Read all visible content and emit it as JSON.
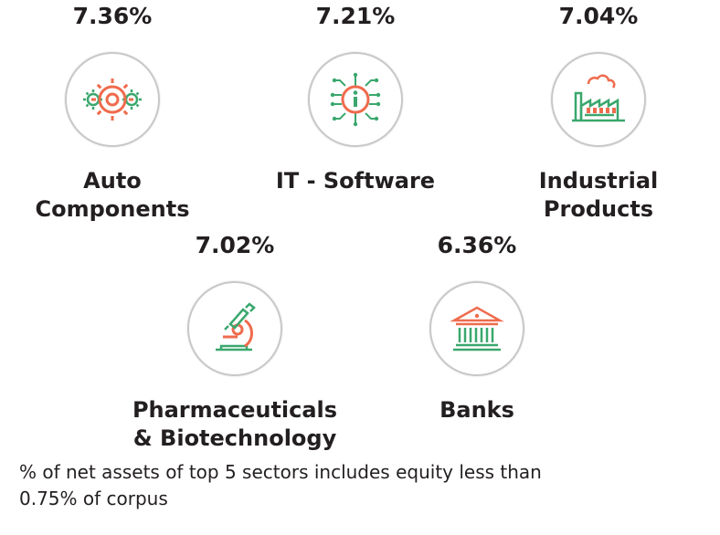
{
  "sectors": [
    {
      "percent": "7.36%",
      "name_line1": "Auto",
      "name_line2": "Components",
      "icon": "gears-icon"
    },
    {
      "percent": "7.21%",
      "name_line1": "IT - Software",
      "name_line2": "",
      "icon": "circuit-chip-icon"
    },
    {
      "percent": "7.04%",
      "name_line1": "Industrial",
      "name_line2": "Products",
      "icon": "factory-icon"
    },
    {
      "percent": "7.02%",
      "name_line1": "Pharmaceuticals",
      "name_line2": "& Biotechnology",
      "icon": "microscope-icon"
    },
    {
      "percent": "6.36%",
      "name_line1": "Banks",
      "name_line2": "",
      "icon": "bank-building-icon"
    }
  ],
  "footnote": {
    "line1": "% of net assets of top 5 sectors includes equity less than",
    "line2": "0.75% of corpus"
  },
  "colors": {
    "accent_orange": "#ef6b4d",
    "accent_green": "#3aa76d",
    "ring_gray": "#c8c8c8",
    "text": "#231f20"
  }
}
